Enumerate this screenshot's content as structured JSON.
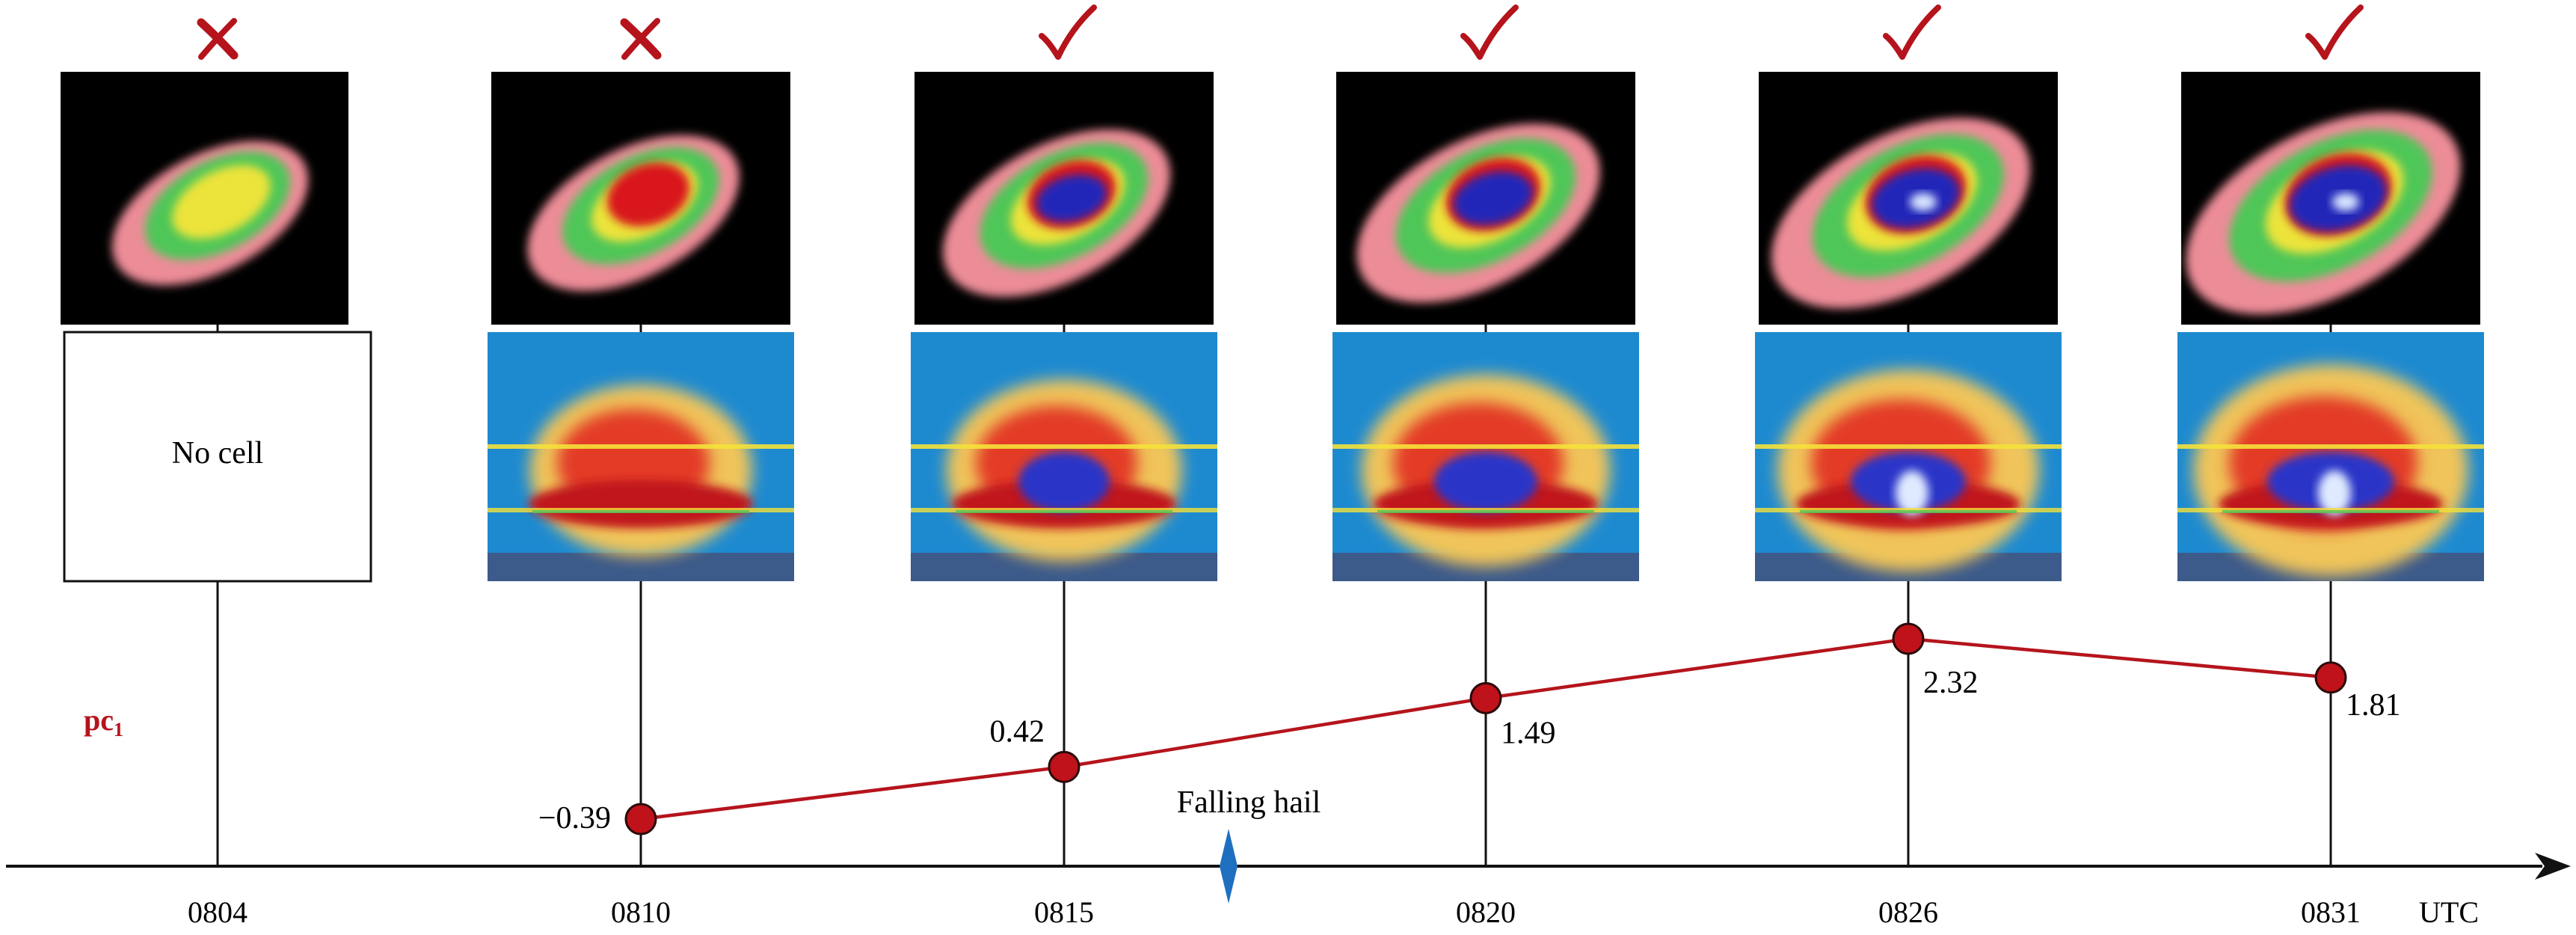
{
  "timeline": {
    "times": [
      "0804",
      "0810",
      "0815",
      "0820",
      "0826",
      "0831"
    ],
    "utc_label": "UTC",
    "event_label": "Falling hail",
    "event_marker_color": "#1f6fc0"
  },
  "frames": [
    {
      "time": "0804",
      "status": "cross",
      "has_cell": false,
      "no_cell_text": "No cell",
      "pc1": null
    },
    {
      "time": "0810",
      "status": "cross",
      "has_cell": true,
      "pc1": -0.39,
      "pc1_label": "−0.39"
    },
    {
      "time": "0815",
      "status": "check",
      "has_cell": true,
      "pc1": 0.42,
      "pc1_label": "0.42"
    },
    {
      "time": "0820",
      "status": "check",
      "has_cell": true,
      "pc1": 1.49,
      "pc1_label": "1.49"
    },
    {
      "time": "0826",
      "status": "check",
      "has_cell": true,
      "pc1": 2.32,
      "pc1_label": "2.32"
    },
    {
      "time": "0831",
      "status": "check",
      "has_cell": true,
      "pc1": 1.81,
      "pc1_label": "1.81"
    }
  ],
  "pc_label": {
    "base": "pc",
    "sub": "1"
  },
  "colors": {
    "mark": "#b5141c",
    "line": "#b5141c",
    "point_fill": "#c0121a",
    "axis": "#111111",
    "sky": "#1d8ad0",
    "ground": "#3c5a8a"
  }
}
